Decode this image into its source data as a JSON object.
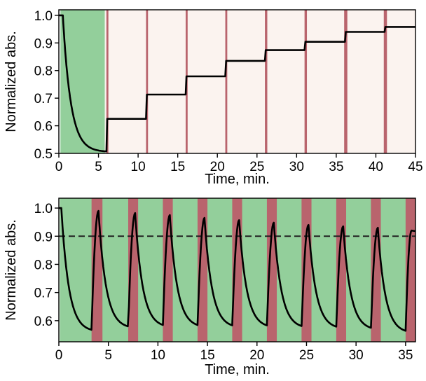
{
  "colors": {
    "background": "#ffffff",
    "green_band": "#93cf9b",
    "light_band": "#fbf3ef",
    "red_band": "#b9646d",
    "curve": "#000000",
    "threshold": "#222222"
  },
  "chart_data": [
    {
      "type": "line",
      "xlabel": "Time, min.",
      "ylabel": "Normalized abs.",
      "xlim": [
        0,
        45
      ],
      "ylim": [
        0.5,
        1.02
      ],
      "xticks": [
        0,
        5,
        10,
        15,
        20,
        25,
        30,
        35,
        40,
        45
      ],
      "yticks": [
        0.5,
        0.6,
        0.7,
        0.8,
        0.9,
        1.0
      ],
      "xtick_labels": [
        "0",
        "5",
        "10",
        "15",
        "20",
        "25",
        "30",
        "35",
        "40",
        "45"
      ],
      "ytick_labels": [
        "0.5",
        "0.6",
        "0.7",
        "0.8",
        "0.9",
        "1.0"
      ],
      "grid": false,
      "shaded_regions": [
        {
          "kind": "green",
          "start": 0.2,
          "end": 5.8
        },
        {
          "kind": "light",
          "start": 5.8,
          "end": 45
        }
      ],
      "pulses": [
        {
          "start": 6.0,
          "end": 6.25
        },
        {
          "start": 11.0,
          "end": 11.25
        },
        {
          "start": 16.0,
          "end": 16.25
        },
        {
          "start": 21.0,
          "end": 21.25
        },
        {
          "start": 26.0,
          "end": 26.3
        },
        {
          "start": 31.0,
          "end": 31.3
        },
        {
          "start": 36.0,
          "end": 36.4
        },
        {
          "start": 41.0,
          "end": 41.4
        }
      ],
      "series": [
        {
          "initial": {
            "t": 0,
            "value": 1.0,
            "hold_until": 0.5
          },
          "decay": {
            "from": 1.0,
            "to": 0.505,
            "tau": 1.0,
            "end": 5.8
          },
          "steps": [
            {
              "t": 6.1,
              "value": 0.625
            },
            {
              "t": 11.1,
              "value": 0.713
            },
            {
              "t": 16.1,
              "value": 0.779
            },
            {
              "t": 21.1,
              "value": 0.835
            },
            {
              "t": 26.1,
              "value": 0.874
            },
            {
              "t": 31.1,
              "value": 0.904
            },
            {
              "t": 36.2,
              "value": 0.94
            },
            {
              "t": 41.2,
              "value": 0.958
            }
          ],
          "end_t": 45
        }
      ]
    },
    {
      "type": "line",
      "xlabel": "Time, min.",
      "ylabel": "Normalized abs.",
      "xlim": [
        0,
        36
      ],
      "ylim": [
        0.525,
        1.035
      ],
      "xticks": [
        0,
        5,
        10,
        15,
        20,
        25,
        30,
        35
      ],
      "yticks": [
        0.6,
        0.7,
        0.8,
        0.9,
        1.0
      ],
      "xtick_labels": [
        "0",
        "5",
        "10",
        "15",
        "20",
        "25",
        "30",
        "35"
      ],
      "ytick_labels": [
        "0.6",
        "0.7",
        "0.8",
        "0.9",
        "1.0"
      ],
      "grid": false,
      "threshold": 0.9,
      "green_span": [
        0.1,
        35.2
      ],
      "red_pulses": [
        {
          "start": 3.3,
          "end": 4.4
        },
        {
          "start": 7.0,
          "end": 8.0
        },
        {
          "start": 10.5,
          "end": 11.5
        },
        {
          "start": 14.0,
          "end": 15.0
        },
        {
          "start": 17.5,
          "end": 18.5
        },
        {
          "start": 21.0,
          "end": 22.0
        },
        {
          "start": 24.5,
          "end": 25.5
        },
        {
          "start": 28.0,
          "end": 29.0
        },
        {
          "start": 31.5,
          "end": 32.5
        },
        {
          "start": 35.0,
          "end": 36.0
        }
      ],
      "series": [
        {
          "initial": {
            "t": 0,
            "value": 1.0,
            "hold_until": 0.25
          },
          "cycles": [
            {
              "decay_start": 0.25,
              "from": 1.0,
              "min": 0.56,
              "trough_t": 3.3,
              "peak_t": 4.0,
              "peak": 0.99
            },
            {
              "decay_start": 4.0,
              "from": 0.99,
              "min": 0.572,
              "trough_t": 7.0,
              "peak_t": 7.7,
              "peak": 0.982
            },
            {
              "decay_start": 7.7,
              "from": 0.982,
              "min": 0.575,
              "trough_t": 10.5,
              "peak_t": 11.2,
              "peak": 0.975
            },
            {
              "decay_start": 11.2,
              "from": 0.975,
              "min": 0.575,
              "trough_t": 14.0,
              "peak_t": 14.7,
              "peak": 0.965
            },
            {
              "decay_start": 14.7,
              "from": 0.965,
              "min": 0.574,
              "trough_t": 17.5,
              "peak_t": 18.2,
              "peak": 0.957
            },
            {
              "decay_start": 18.2,
              "from": 0.957,
              "min": 0.574,
              "trough_t": 21.0,
              "peak_t": 21.7,
              "peak": 0.948
            },
            {
              "decay_start": 21.7,
              "from": 0.948,
              "min": 0.572,
              "trough_t": 24.5,
              "peak_t": 25.2,
              "peak": 0.94
            },
            {
              "decay_start": 25.2,
              "from": 0.94,
              "min": 0.57,
              "trough_t": 28.0,
              "peak_t": 28.7,
              "peak": 0.935
            },
            {
              "decay_start": 28.7,
              "from": 0.935,
              "min": 0.566,
              "trough_t": 31.5,
              "peak_t": 32.2,
              "peak": 0.93
            },
            {
              "decay_start": 32.2,
              "from": 0.93,
              "min": 0.555,
              "trough_t": 35.0,
              "peak_t": 35.6,
              "peak": 0.92
            }
          ],
          "end_t": 36,
          "end_value": 0.918
        }
      ]
    }
  ]
}
